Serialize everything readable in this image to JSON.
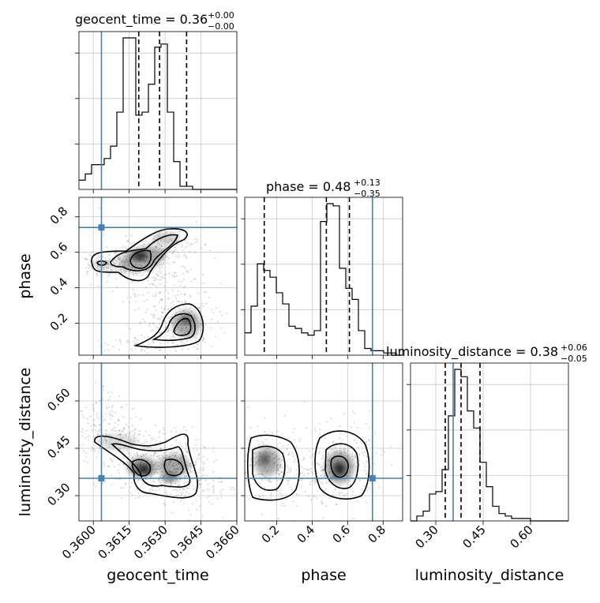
{
  "chart_data": {
    "type": "corner",
    "parameters": [
      {
        "name": "geocent_time",
        "label": "geocent_time",
        "truth": 0.36034,
        "range": [
          0.3594,
          0.366
        ],
        "ticks": [
          0.36,
          0.3615,
          0.363,
          0.3645,
          0.366
        ],
        "tick_labels": [
          "0.3600",
          "0.3615",
          "0.3630",
          "0.3645",
          "0.3660"
        ],
        "quantiles": [
          0.3619,
          0.36277,
          0.3639
        ]
      },
      {
        "name": "phase",
        "label": "phase",
        "truth": 0.74,
        "range": [
          0.02,
          0.91
        ],
        "ticks": [
          0.2,
          0.4,
          0.6,
          0.8
        ],
        "tick_labels": [
          "0.2",
          "0.4",
          "0.6",
          "0.8"
        ],
        "quantiles": [
          0.13,
          0.48,
          0.61
        ]
      },
      {
        "name": "luminosity_distance",
        "label": "luminosity_distance",
        "truth": 0.355,
        "range": [
          0.22,
          0.72
        ],
        "ticks": [
          0.3,
          0.45,
          0.6
        ],
        "tick_labels": [
          "0.30",
          "0.45",
          "0.60"
        ],
        "quantiles": [
          0.33,
          0.38,
          0.44
        ]
      }
    ],
    "titles": [
      {
        "prefix": "geocent_time = 0.36",
        "plus": "+0.00",
        "minus": "−0.00"
      },
      {
        "prefix": "phase = 0.48",
        "plus": "+0.13",
        "minus": "−0.35"
      },
      {
        "prefix": "luminosity_distance = 0.38",
        "plus": "+0.06",
        "minus": "−0.05"
      }
    ],
    "hist": {
      "geocent_time": {
        "edges_start": 0.3594,
        "bin_width": 0.000264,
        "counts": [
          3,
          5,
          8,
          8,
          10,
          14,
          25,
          49,
          49,
          24,
          25,
          34,
          46,
          47,
          25,
          9,
          1,
          1,
          0,
          0,
          0,
          0,
          0,
          0,
          0
        ]
      },
      "phase": {
        "edges_start": 0.02,
        "bin_width": 0.0356,
        "counts": [
          10,
          22,
          41,
          38,
          35,
          28,
          23,
          13,
          12,
          10,
          9,
          11,
          60,
          68,
          67,
          39,
          30,
          25,
          11,
          3,
          2,
          2,
          1,
          1,
          0
        ]
      },
      "luminosity_distance": {
        "edges_start": 0.22,
        "bin_width": 0.02,
        "counts": [
          0,
          2,
          4,
          11,
          12,
          21,
          43,
          62,
          59,
          45,
          38,
          24,
          14,
          6,
          3,
          2,
          1,
          1,
          1,
          0,
          0,
          0,
          0,
          0,
          0
        ]
      }
    },
    "grid": true,
    "truth_color": "#4682b4"
  }
}
